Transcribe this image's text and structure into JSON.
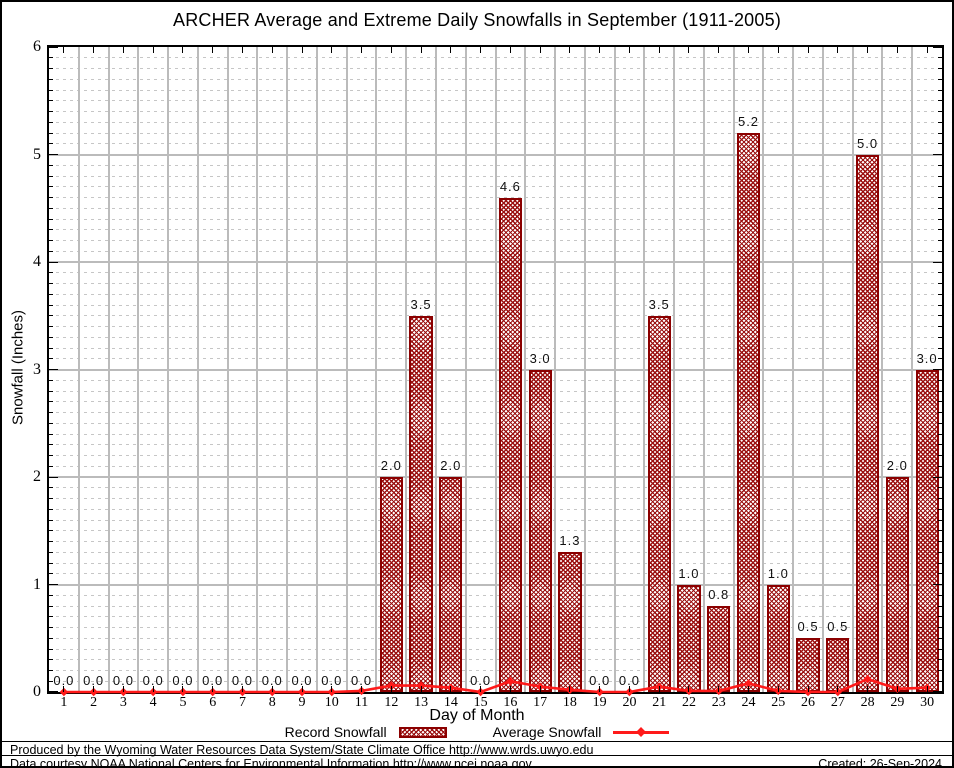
{
  "chart_data": {
    "type": "bar",
    "title": "ARCHER Average and Extreme Daily Snowfalls in September (1911-2005)",
    "xlabel": "Day of Month",
    "ylabel": "Snowfall (Inches)",
    "ylim": [
      0,
      6
    ],
    "y_major_step": 1,
    "y_minor_step": 0.1,
    "grid": "major solid + minor dashed, boundary vertical lines between days",
    "legend_position": "bottom",
    "x_categories": [
      1,
      2,
      3,
      4,
      5,
      6,
      7,
      8,
      9,
      10,
      11,
      12,
      13,
      14,
      15,
      16,
      17,
      18,
      19,
      20,
      21,
      22,
      23,
      24,
      25,
      26,
      27,
      28,
      29,
      30
    ],
    "series": [
      {
        "name": "Record Snowfall",
        "type": "bar",
        "values": [
          0.0,
          0.0,
          0.0,
          0.0,
          0.0,
          0.0,
          0.0,
          0.0,
          0.0,
          0.0,
          0.0,
          2.0,
          3.5,
          2.0,
          0.0,
          4.6,
          3.0,
          1.3,
          0.0,
          0.0,
          3.5,
          1.0,
          0.8,
          5.2,
          1.0,
          0.5,
          0.5,
          5.0,
          2.0,
          3.0
        ],
        "data_labels_shown": true
      },
      {
        "name": "Average Snowfall",
        "type": "line",
        "values": [
          0.0,
          0.0,
          0.0,
          0.0,
          0.0,
          0.0,
          0.0,
          0.0,
          0.0,
          0.0,
          0.01,
          0.06,
          0.06,
          0.04,
          0.0,
          0.1,
          0.05,
          0.02,
          0.0,
          0.0,
          0.05,
          0.01,
          0.01,
          0.08,
          0.01,
          0.0,
          0.0,
          0.12,
          0.03,
          0.04
        ],
        "data_labels_shown": false
      }
    ]
  },
  "legend": {
    "record_label": "Record Snowfall",
    "average_label": "Average Snowfall"
  },
  "footer": {
    "line1": "Produced by the Wyoming Water Resources Data System/State Climate Office http://www.wrds.uwyo.edu",
    "line2": "Data courtesy NOAA National Centers for Environmental Information http://www.ncei.noaa.gov",
    "created": "Created: 26-Sep-2024"
  },
  "colors": {
    "bar_border": "#8b0000",
    "bar_hatch": "#9b1010",
    "average_line": "#ff1a1a",
    "grid_major": "#bbbbbb",
    "grid_minor": "#c6c6c6"
  }
}
